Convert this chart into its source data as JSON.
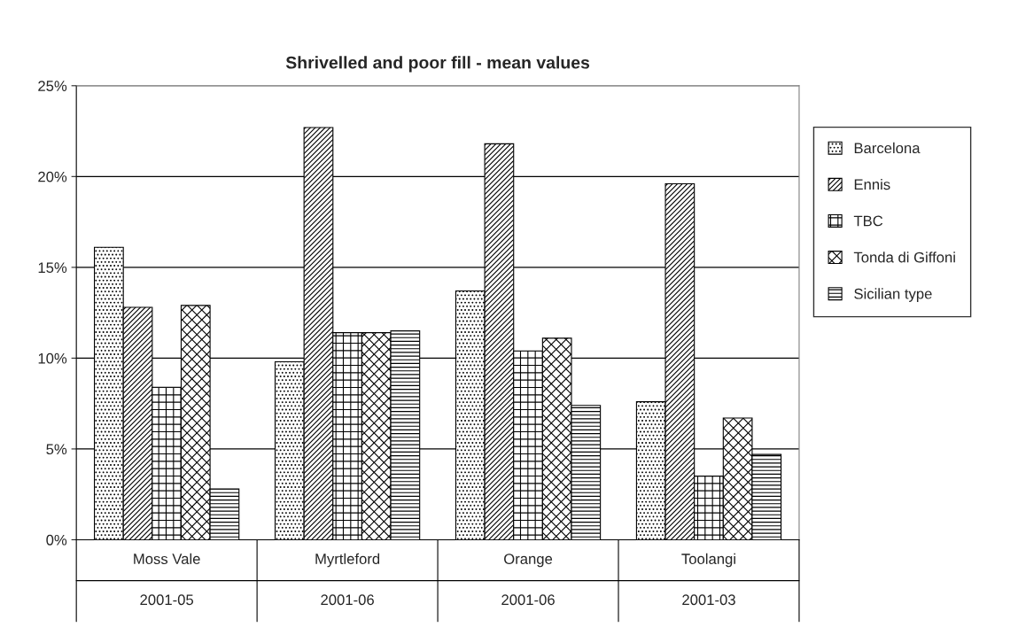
{
  "chart_data": {
    "type": "bar",
    "title": "Shrivelled and poor fill - mean values",
    "categories": [
      "Moss Vale\n2001-05",
      "Myrtleford\n2001-06",
      "Orange\n2001-06",
      "Toolangi\n2001-03"
    ],
    "series": [
      {
        "name": "Barcelona",
        "color": "#000000",
        "values": [
          16.1,
          9.8,
          13.7,
          7.6
        ]
      },
      {
        "name": "Ennis",
        "color": "#000000",
        "values": [
          12.8,
          22.7,
          21.8,
          19.6
        ]
      },
      {
        "name": "TBC",
        "color": "#000000",
        "values": [
          8.4,
          11.4,
          10.4,
          3.5
        ]
      },
      {
        "name": "Tonda di Giffoni",
        "color": "#000000",
        "values": [
          12.9,
          11.4,
          11.1,
          6.7
        ]
      },
      {
        "name": "Sicilian type",
        "color": "#000000",
        "values": [
          2.8,
          11.5,
          7.4,
          4.7
        ]
      }
    ],
    "ylim": [
      0,
      25
    ],
    "yticks": [
      {
        "value": 0,
        "label": "0%"
      },
      {
        "value": 5,
        "label": "5%"
      },
      {
        "value": 10,
        "label": "10%"
      },
      {
        "value": 15,
        "label": "15%"
      },
      {
        "value": 20,
        "label": "20%"
      },
      {
        "value": 25,
        "label": "25%"
      }
    ],
    "grid": "y",
    "legend": "right"
  }
}
